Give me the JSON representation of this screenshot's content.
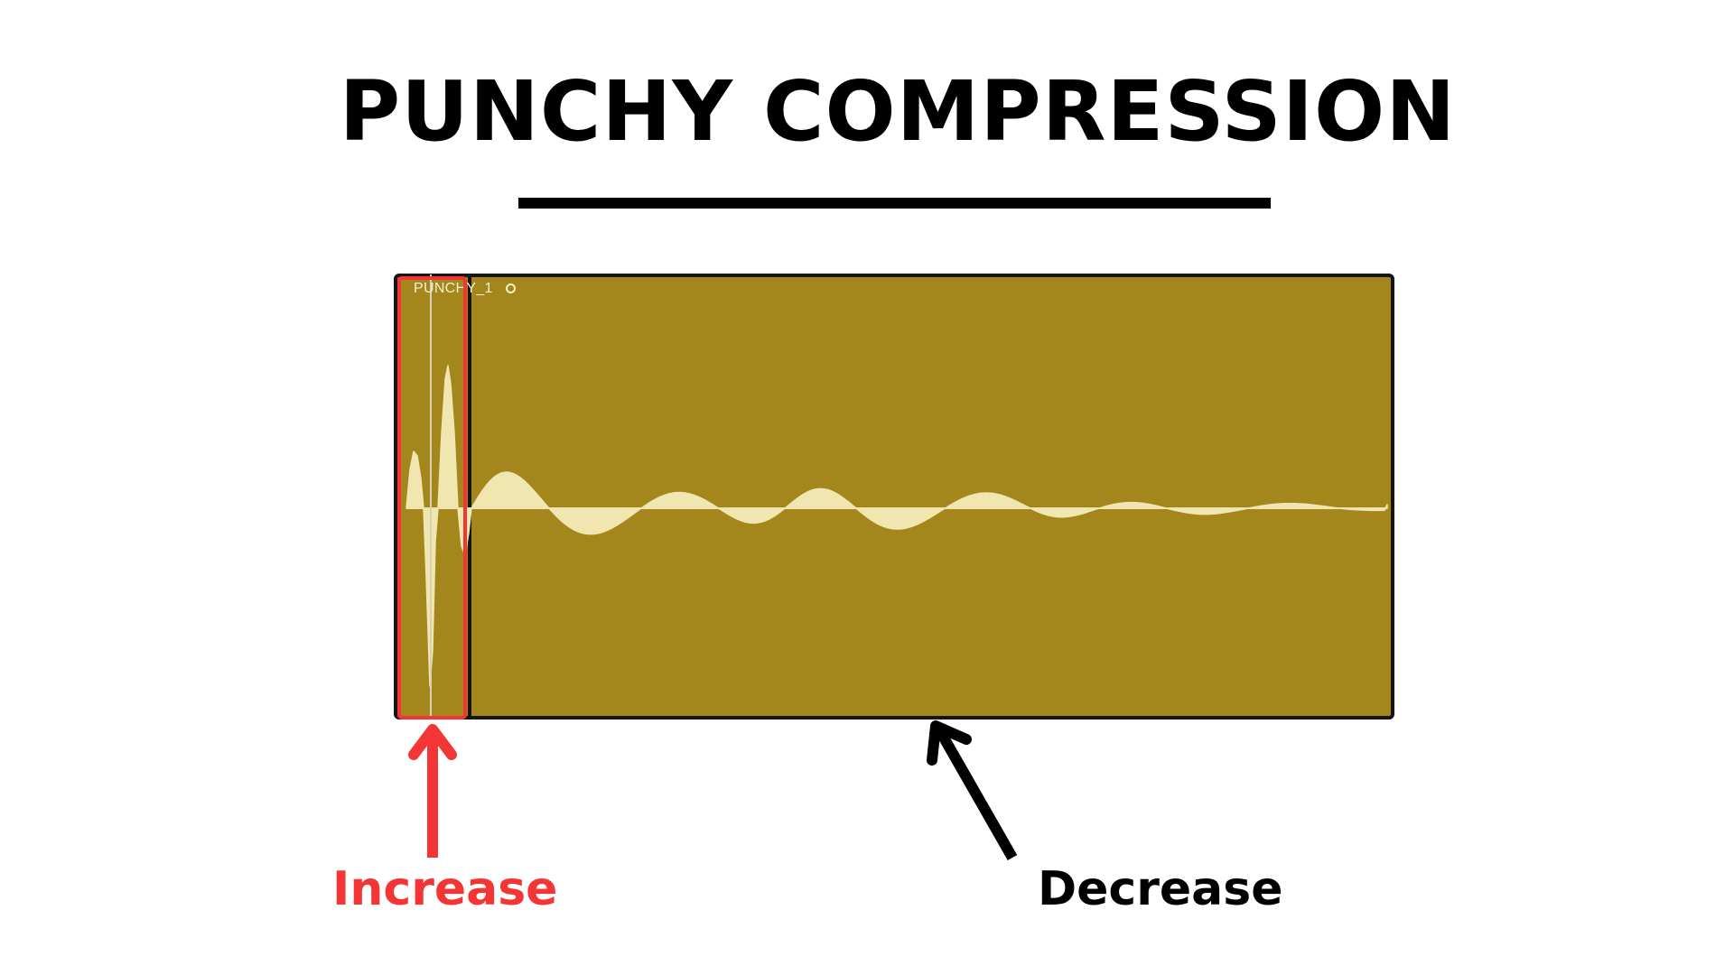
{
  "title": "PUNCHY COMPRESSION",
  "clip": {
    "name": "PUNCHY_1",
    "loop_icon": "loop-circle-icon"
  },
  "annotations": {
    "increase_label": "Increase",
    "decrease_label": "Decrease"
  },
  "colors": {
    "clip_fill": "#a3871d",
    "waveform": "#f1e6b0",
    "highlight": "#f43535",
    "text_dark": "#000000"
  }
}
